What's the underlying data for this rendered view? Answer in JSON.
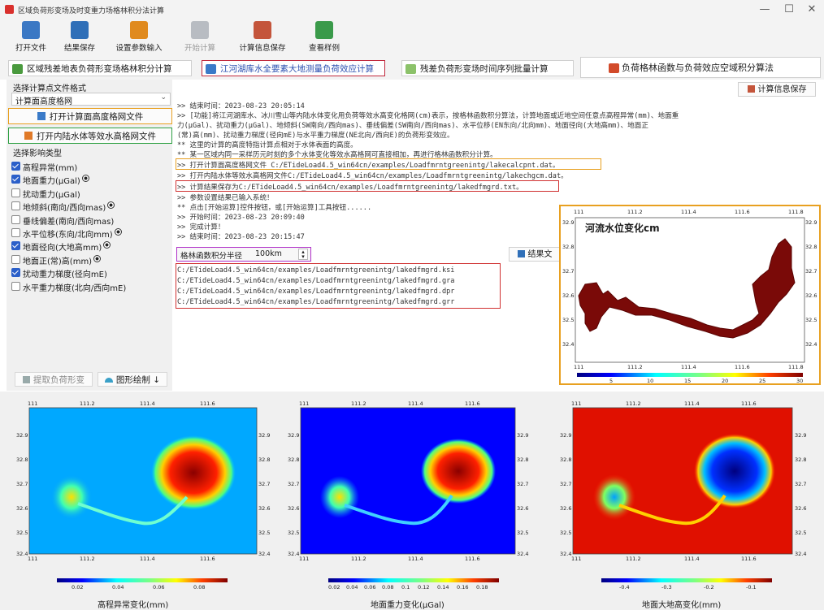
{
  "window": {
    "title": "区域负荷形变场及时变重力场格林积分法计算",
    "minimize": "—",
    "maximize": "☐",
    "close": "✕"
  },
  "toolbar": [
    {
      "label": "打开文件",
      "icon": "open-file-icon",
      "color": "#3b78c4",
      "enabled": true
    },
    {
      "label": "结果保存",
      "icon": "save-icon",
      "color": "#2f6fb8",
      "enabled": true
    },
    {
      "label": "设置参数输入",
      "icon": "settings-icon",
      "color": "#e08a1e",
      "enabled": true
    },
    {
      "label": "开始计算",
      "icon": "start-compute-icon",
      "color": "#9aa0a8",
      "enabled": false
    },
    {
      "label": "计算信息保存",
      "icon": "info-save-icon",
      "color": "#c4553b",
      "enabled": true
    },
    {
      "label": "查看样例",
      "icon": "view-sample-icon",
      "color": "#3a9a4a",
      "enabled": true
    }
  ],
  "tabs": [
    {
      "label": "区域残差地表负荷形变场格林积分计算",
      "active": false
    },
    {
      "label": "江河湖库水全要素大地测量负荷效应计算",
      "active": true
    },
    {
      "label": "残差负荷形变场时间序列批量计算",
      "active": false
    },
    {
      "label": "负荷格林函数与负荷效应空域积分算法",
      "active": false
    }
  ],
  "left": {
    "select_format_label": "选择计算点文件格式",
    "format_value": "计算面高度格网",
    "open_calc_btn": "打开计算面高度格网文件",
    "open_water_btn": "打开内陆水体等效水高格网文件",
    "effect_type_label": "选择影响类型",
    "effects": [
      {
        "label": "高程异常(mm)",
        "checked": true,
        "radio": false
      },
      {
        "label": "地面重力(μGal)",
        "checked": true,
        "radio": true
      },
      {
        "label": "扰动重力(μGal)",
        "checked": false,
        "radio": false
      },
      {
        "label": "地倾斜(南向/西向mas)",
        "checked": false,
        "radio": true
      },
      {
        "label": "垂线偏差(南向/西向mas)",
        "checked": false,
        "radio": false
      },
      {
        "label": "水平位移(东向/北向mm)",
        "checked": false,
        "radio": true
      },
      {
        "label": "地面径向(大地高mm)",
        "checked": true,
        "radio": true
      },
      {
        "label": "地面正(常)高(mm)",
        "checked": false,
        "radio": true
      },
      {
        "label": "扰动重力梯度(径向mE)",
        "checked": true,
        "radio": false
      },
      {
        "label": "水平重力梯度(北向/西向mE)",
        "checked": false,
        "radio": false
      }
    ],
    "extract_btn": "提取负荷形变",
    "draw_btn": "图形绘制 ↓"
  },
  "info_save_btn": "计算信息保存",
  "log": [
    ">> 结束时间：2023-08-23 20:05:14",
    ">> [功能]将江河湖库水、冰川雪山等内陆水体变化用负荷等效水高变化格网(cm)表示，按格林函数积分算法，计算地面或近地空间任意点高程异常(mm)、地面重",
    "力(μGal)、扰动重力(μGal)、地倾斜(SW南向/西向mas)、垂线偏差(SW南向/西向mas)、水平位移(EN东向/北向mm)、地面径向(大地高mm)、地面正",
    "(常)高(mm)、扰动重力梯度(径向mE)与水平重力梯度(NE北向/西向E)的负荷形变效应。",
    "  ** 这里的计算的高度特指计算点相对于水体表面的高度。",
    "  ** 某一区域内同一采样历元时刻的多个水体变化等效水高格网可直接相加，再进行格林函数积分计算。",
    ">> 打开计算面高度格网文件 C:/ETideLoad4.5_win64cn/examples/Loadfmrntgreenintg/lakecalcpnt.dat。",
    ">> 打开内陆水体等效水高格网文件C:/ETideLoad4.5_win64cn/examples/Loadfmrntgreenintg/lakechgcm.dat。",
    ">> 计算结果保存为C:/ETideLoad4.5_win64cn/examples/Loadfmrntgreenintg/lakedfmgrd.txt。",
    ">> 参数设置结果已输入系统！",
    "  ** 点击[开始运算]控件按钮，或[开始运算]工具按钮......",
    ">> 开始时间：2023-08-23 20:09:40",
    ">> 完成计算！",
    ">> 结束时间：2023-08-23 20:15:47"
  ],
  "radius": {
    "label": "格林函数积分半径",
    "value": "100km"
  },
  "result_btn": "结果文",
  "result_files": [
    "C:/ETideLoad4.5_win64cn/examples/Loadfmrntgreenintg/lakedfmgrd.ksi",
    "C:/ETideLoad4.5_win64cn/examples/Loadfmrntgreenintg/lakedfmgrd.gra",
    "C:/ETideLoad4.5_win64cn/examples/Loadfmrntgreenintg/lakedfmgrd.dpr",
    "C:/ETideLoad4.5_win64cn/examples/Loadfmrntgreenintg/lakedfmgrd.grr"
  ],
  "inset": {
    "title": "河流水位变化cm",
    "x_ticks": [
      "111",
      "111.2",
      "111.4",
      "111.6",
      "111.8"
    ],
    "y_ticks": [
      "32.9",
      "32.8",
      "32.7",
      "32.6",
      "32.5",
      "32.4"
    ],
    "colorbar_ticks": [
      "5",
      "10",
      "15",
      "20",
      "25",
      "30"
    ]
  },
  "maps": [
    {
      "caption": "高程异常变化(mm)",
      "x_ticks": [
        "111",
        "111.2",
        "111.4",
        "111.6"
      ],
      "y_ticks": [
        "32.9",
        "32.8",
        "32.7",
        "32.6",
        "32.5",
        "32.4"
      ],
      "colorbar_ticks": [
        "0.02",
        "0.04",
        "0.06",
        "0.08"
      ]
    },
    {
      "caption": "地面重力变化(μGal)",
      "x_ticks": [
        "111",
        "111.2",
        "111.4",
        "111.6"
      ],
      "y_ticks": [
        "32.9",
        "32.8",
        "32.7",
        "32.6",
        "32.5",
        "32.4"
      ],
      "colorbar_ticks": [
        "0.02",
        "0.04",
        "0.06",
        "0.08",
        "0.1",
        "0.12",
        "0.14",
        "0.16",
        "0.18"
      ]
    },
    {
      "caption": "地面大地高变化(mm)",
      "x_ticks": [
        "111",
        "111.2",
        "111.4",
        "111.6"
      ],
      "y_ticks": [
        "32.9",
        "32.8",
        "32.7",
        "32.6",
        "32.5",
        "32.4"
      ],
      "colorbar_ticks": [
        "-0.4",
        "-0.3",
        "-0.2",
        "-0.1"
      ]
    }
  ],
  "colors": {
    "highlight_orange": "#e8a020",
    "highlight_red": "#d03030",
    "highlight_green": "#2ea043",
    "highlight_purple": "#b030c8",
    "tab_active_border": "#c0283c"
  }
}
